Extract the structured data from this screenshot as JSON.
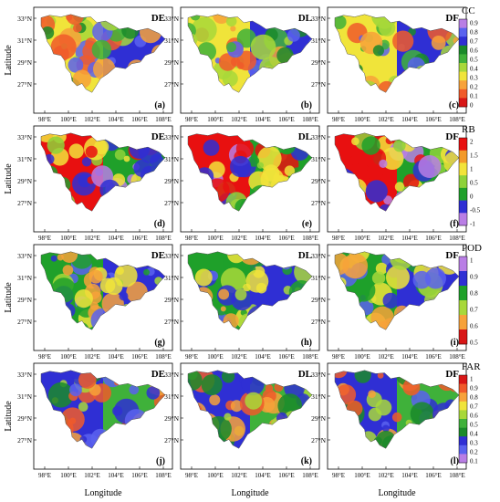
{
  "axes": {
    "xlabel": "Longitude",
    "ylabel": "Latitude",
    "xticks": [
      "98°E",
      "100°E",
      "102°E",
      "104°E",
      "106°E",
      "108°E"
    ],
    "yticks": [
      "33°N",
      "31°N",
      "29°N",
      "27°N"
    ]
  },
  "rows": [
    {
      "metric": "CC",
      "colorbar": {
        "ticks": [
          "0.9",
          "0.8",
          "0.7",
          "0.6",
          "0.5",
          "0.4",
          "0.3",
          "0.2",
          "0.1",
          "0"
        ],
        "colors": [
          "#b97ee5",
          "#5a62ef",
          "#2f2fd4",
          "#1a8a2a",
          "#3fb13a",
          "#a8d83a",
          "#f0e43a",
          "#f7a23a",
          "#f05a2a",
          "#d81616"
        ]
      },
      "panels": [
        {
          "label": "(a)",
          "product": "DE",
          "dominant": "mixed-cc"
        },
        {
          "label": "(b)",
          "product": "DL",
          "dominant": "mixed-cc"
        },
        {
          "label": "(c)",
          "product": "DF",
          "dominant": "mixed-cc"
        }
      ]
    },
    {
      "metric": "RB",
      "colorbar": {
        "ticks": [
          "2",
          "1.5",
          "1",
          "0.5",
          "0",
          "-0.5",
          "-1"
        ],
        "colors": [
          "#e81010",
          "#f39a2a",
          "#f2e33a",
          "#8ed23a",
          "#1fa02a",
          "#2f2fd4",
          "#b97ee5"
        ]
      },
      "panels": [
        {
          "label": "(d)",
          "product": "DE",
          "dominant": "mixed-rb"
        },
        {
          "label": "(e)",
          "product": "DL",
          "dominant": "mixed-rb"
        },
        {
          "label": "(f)",
          "product": "DF",
          "dominant": "mixed-rb"
        }
      ]
    },
    {
      "metric": "POD",
      "colorbar": {
        "ticks": [
          "1",
          "0.9",
          "0.8",
          "0.7",
          "0.6",
          "0.5"
        ],
        "colors": [
          "#b97ee5",
          "#2f2fd4",
          "#1fa02a",
          "#a8d83a",
          "#f7a23a",
          "#d81616"
        ]
      },
      "panels": [
        {
          "label": "(g)",
          "product": "DE",
          "dominant": "mixed-pod"
        },
        {
          "label": "(h)",
          "product": "DL",
          "dominant": "mixed-pod"
        },
        {
          "label": "(i)",
          "product": "DF",
          "dominant": "mixed-pod"
        }
      ]
    },
    {
      "metric": "FAR",
      "colorbar": {
        "ticks": [
          "1",
          "0.9",
          "0.8",
          "0.7",
          "0.6",
          "0.5",
          "0.4",
          "0.3",
          "0.2",
          "0.1"
        ],
        "colors": [
          "#d81616",
          "#f05a2a",
          "#f7a23a",
          "#f0e43a",
          "#a8d83a",
          "#3fb13a",
          "#1a8a2a",
          "#2f2fd4",
          "#5a62ef",
          "#b97ee5"
        ]
      },
      "panels": [
        {
          "label": "(j)",
          "product": "DE",
          "dominant": "mixed-far"
        },
        {
          "label": "(k)",
          "product": "DL",
          "dominant": "mixed-far"
        },
        {
          "label": "(l)",
          "product": "DF",
          "dominant": "mixed-far"
        }
      ]
    }
  ]
}
